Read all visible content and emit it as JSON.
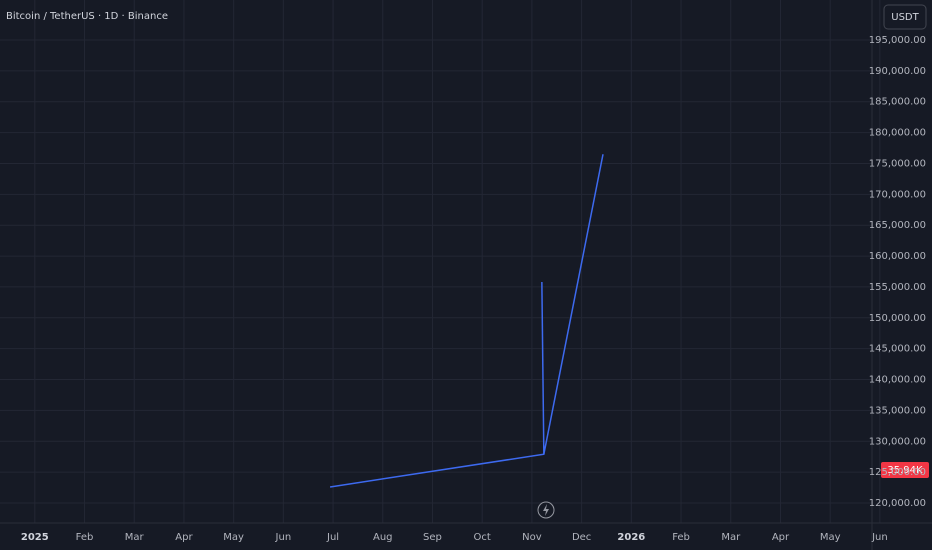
{
  "chart_data": {
    "type": "line",
    "title": "Bitcoin / TetherUS · 1D · Binance",
    "currency_button": "USDT",
    "volume_label": "35.94K",
    "xlim": [
      -0.7,
      16.64
    ],
    "xticks": [
      {
        "value": 0,
        "label": "2025"
      },
      {
        "value": 1,
        "label": "Feb"
      },
      {
        "value": 2,
        "label": "Mar"
      },
      {
        "value": 3,
        "label": "Apr"
      },
      {
        "value": 4,
        "label": "May"
      },
      {
        "value": 5,
        "label": "Jun"
      },
      {
        "value": 6,
        "label": "Jul"
      },
      {
        "value": 7,
        "label": "Aug"
      },
      {
        "value": 8,
        "label": "Sep"
      },
      {
        "value": 9,
        "label": "Oct"
      },
      {
        "value": 10,
        "label": "Nov"
      },
      {
        "value": 11,
        "label": "Dec"
      },
      {
        "value": 12,
        "label": "2026"
      },
      {
        "value": 13,
        "label": "Feb"
      },
      {
        "value": 14,
        "label": "Mar"
      },
      {
        "value": 15,
        "label": "Apr"
      },
      {
        "value": 16,
        "label": "May"
      },
      {
        "value": 17,
        "label": "Jun"
      }
    ],
    "ylim": [
      116760,
      201480
    ],
    "yticks": [
      {
        "value": 120000,
        "label": "120,000.00"
      },
      {
        "value": 125000,
        "label": "125,000.00"
      },
      {
        "value": 130000,
        "label": "130,000.00"
      },
      {
        "value": 135000,
        "label": "135,000.00"
      },
      {
        "value": 140000,
        "label": "140,000.00"
      },
      {
        "value": 145000,
        "label": "145,000.00"
      },
      {
        "value": 150000,
        "label": "150,000.00"
      },
      {
        "value": 155000,
        "label": "155,000.00"
      },
      {
        "value": 160000,
        "label": "160,000.00"
      },
      {
        "value": 165000,
        "label": "165,000.00"
      },
      {
        "value": 170000,
        "label": "170,000.00"
      },
      {
        "value": 175000,
        "label": "175,000.00"
      },
      {
        "value": 180000,
        "label": "180,000.00"
      },
      {
        "value": 185000,
        "label": "185,000.00"
      },
      {
        "value": 190000,
        "label": "190,000.00"
      },
      {
        "value": 195000,
        "label": "195,000.00"
      }
    ],
    "grid": true,
    "series": [
      {
        "color": "#3d6af0",
        "x": [
          5.94,
          10.24,
          11.43
        ],
        "values": [
          122600,
          127900,
          176500
        ]
      },
      {
        "color": "#3d6af0",
        "x": [
          10.2,
          10.24
        ],
        "values": [
          155800,
          127900
        ]
      }
    ]
  }
}
